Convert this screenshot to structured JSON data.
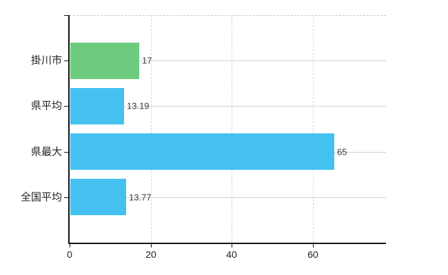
{
  "chart_data": {
    "type": "bar",
    "orientation": "horizontal",
    "title": "",
    "categories": [
      "掛川市",
      "県平均",
      "県最大",
      "全国平均"
    ],
    "values": [
      17,
      13.19,
      65,
      13.77
    ],
    "value_labels": [
      "17",
      "13.19",
      "65",
      "13.77"
    ],
    "bar_colors": [
      "#6dcb80",
      "#45c1f0",
      "#45c1f0",
      "#45c1f0"
    ],
    "x_tick_labels": [
      "0",
      "20",
      "40",
      "60"
    ],
    "x_tick_values": [
      0,
      20,
      40,
      60
    ],
    "xlim": [
      0,
      78
    ],
    "legend": null,
    "grid": {
      "horizontal_solid_at_rows": true,
      "vertical_dashed_at_ticks": true,
      "dashed_top_border": true
    },
    "colors": {
      "bar_default": "#45c1f0",
      "bar_highlight": "#6dcb80",
      "axis": "#111111",
      "grid_horizontal": "#ccd4cb",
      "grid_vertical": "#d4d4d4",
      "text": "#222222",
      "value_text": "#3a3a3a"
    }
  }
}
